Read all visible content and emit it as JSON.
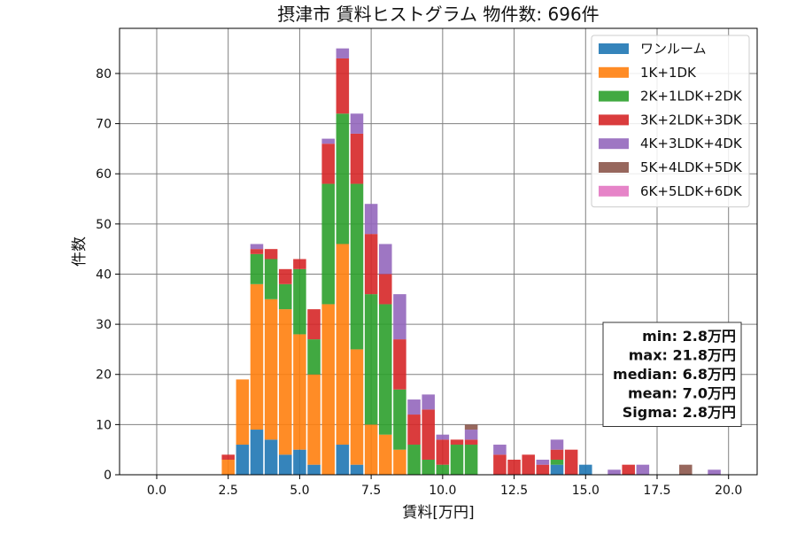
{
  "chart_data": {
    "type": "bar",
    "stacked": true,
    "title": "摂津市 賃料ヒストグラム  物件数: 696件",
    "xlabel": "賃料[万円]",
    "ylabel": "件数",
    "xlim": [
      -1.3,
      21.0
    ],
    "ylim": [
      0,
      89
    ],
    "x_ticks": [
      0,
      2.5,
      5,
      7.5,
      10,
      12.5,
      15,
      17.5,
      20
    ],
    "x_tick_labels": [
      "0.0",
      "2.5",
      "5.0",
      "7.5",
      "10.0",
      "12.5",
      "15.0",
      "17.5",
      "20.0"
    ],
    "y_ticks": [
      0,
      10,
      20,
      30,
      40,
      50,
      60,
      70,
      80
    ],
    "y_tick_labels": [
      "0",
      "10",
      "20",
      "30",
      "40",
      "50",
      "60",
      "70",
      "80"
    ],
    "grid": true,
    "legend_position": "top-right",
    "bin_width": 0.5,
    "x": [
      2.5,
      3.0,
      3.5,
      4.0,
      4.5,
      5.0,
      5.5,
      6.0,
      6.5,
      7.0,
      7.5,
      8.0,
      8.5,
      9.0,
      9.5,
      10.0,
      10.5,
      11.0,
      12.0,
      12.5,
      13.0,
      13.5,
      14.0,
      14.5,
      15.0,
      16.0,
      16.5,
      17.0,
      18.5,
      19.5
    ],
    "series": [
      {
        "name": "ワンルーム",
        "color": "#1f77b4",
        "values": [
          0,
          6,
          9,
          7,
          4,
          5,
          2,
          0,
          6,
          2,
          0,
          0,
          0,
          0,
          0,
          0,
          0,
          0,
          0,
          0,
          0,
          0,
          2,
          0,
          2,
          0,
          0,
          0,
          0,
          0
        ]
      },
      {
        "name": "1K+1DK",
        "color": "#ff7f0e",
        "values": [
          3,
          13,
          29,
          28,
          29,
          23,
          18,
          34,
          40,
          23,
          10,
          8,
          5,
          0,
          0,
          0,
          0,
          0,
          0,
          0,
          0,
          0,
          0,
          0,
          0,
          0,
          0,
          0,
          0,
          0
        ]
      },
      {
        "name": "2K+1LDK+2DK",
        "color": "#2ca02c",
        "values": [
          0,
          0,
          6,
          8,
          5,
          13,
          7,
          24,
          26,
          33,
          26,
          26,
          12,
          6,
          3,
          2,
          6,
          6,
          0,
          0,
          0,
          0,
          1,
          0,
          0,
          0,
          0,
          0,
          0,
          0
        ]
      },
      {
        "name": "3K+2LDK+3DK",
        "color": "#d62728",
        "values": [
          1,
          0,
          1,
          2,
          3,
          2,
          6,
          8,
          11,
          10,
          12,
          6,
          10,
          6,
          10,
          5,
          1,
          1,
          4,
          3,
          4,
          2,
          2,
          5,
          0,
          0,
          2,
          0,
          0,
          0
        ]
      },
      {
        "name": "4K+3LDK+4DK",
        "color": "#9467bd",
        "values": [
          0,
          0,
          1,
          0,
          0,
          0,
          0,
          1,
          2,
          4,
          6,
          6,
          9,
          3,
          3,
          1,
          0,
          2,
          2,
          0,
          0,
          1,
          2,
          0,
          0,
          1,
          0,
          2,
          0,
          1
        ]
      },
      {
        "name": "5K+4LDK+5DK",
        "color": "#8c564b",
        "values": [
          0,
          0,
          0,
          0,
          0,
          0,
          0,
          0,
          0,
          0,
          0,
          0,
          0,
          0,
          0,
          0,
          0,
          1,
          0,
          0,
          0,
          0,
          0,
          0,
          0,
          0,
          0,
          0,
          2,
          0
        ]
      },
      {
        "name": "6K+5LDK+6DK",
        "color": "#e377c2",
        "values": [
          0,
          0,
          0,
          0,
          0,
          0,
          0,
          0,
          0,
          0,
          0,
          0,
          0,
          0,
          0,
          0,
          0,
          0,
          0,
          0,
          0,
          0,
          0,
          0,
          0,
          0,
          0,
          0,
          0,
          0
        ]
      }
    ],
    "stats": [
      "min: 2.8万円",
      "max: 21.8万円",
      "median: 6.8万円",
      "mean: 7.0万円",
      "Sigma: 2.8万円"
    ]
  }
}
